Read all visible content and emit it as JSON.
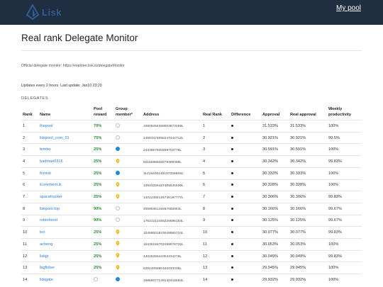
{
  "header": {
    "brand": "Lisk",
    "my_pool_label": "My pool"
  },
  "page": {
    "title": "Real rank Delegate Monitor",
    "official_text": "Official delegate monitor: https://explorer.lisk.io/delegateMonitor",
    "updates_text": "Updates every 2 hours. Last update: Jan10 23:20",
    "section_label": "DELEGATES"
  },
  "table": {
    "columns": {
      "rank": "Rank",
      "name": "Name",
      "pool_reward": "Pool reward",
      "group_member": "Group member*",
      "address": "Address",
      "real_rank": "Real Rank",
      "difference": "Difference",
      "approval": "Approval",
      "real_approval": "Real approval",
      "weekly_productivity": "Weekly productivity"
    },
    "rows": [
      {
        "rank": "1",
        "name": "thepool",
        "reward": "70%",
        "member": "empty",
        "address": "10809494368003872009L",
        "real_rank": "1",
        "approval": "31.533%",
        "real_approval": "31.533%",
        "productivity": "100%"
      },
      {
        "rank": "2",
        "name": "liskpool_com_01",
        "reward": "75%",
        "member": "empty",
        "address": "14593474056247442712L",
        "real_rank": "2",
        "approval": "30.921%",
        "real_approval": "30.921%",
        "productivity": "99.5%"
      },
      {
        "rank": "3",
        "name": "tembo",
        "reward": "25%",
        "member": "blue",
        "address": "2433657930558702776L",
        "real_rank": "3",
        "approval": "30.591%",
        "real_approval": "30.591%",
        "productivity": "100%"
      },
      {
        "rank": "4",
        "name": "badman0316",
        "reward": "25%",
        "member": "pin",
        "address": "8015598606079399388L",
        "real_rank": "4",
        "approval": "30.342%",
        "real_approval": "30.342%",
        "productivity": "99.83%"
      },
      {
        "rank": "5",
        "name": "forrest",
        "reward": "25%",
        "member": "blue",
        "address": "1141640614610725898SL",
        "real_rank": "5",
        "approval": "30.333%",
        "real_approval": "30.333%",
        "productivity": "100%"
      },
      {
        "rank": "6",
        "name": "iii.element.iii",
        "reward": "25%",
        "member": "pin",
        "address": "13943256167405531820L",
        "real_rank": "6",
        "approval": "30.328%",
        "real_approval": "30.328%",
        "productivity": "100%"
      },
      {
        "rank": "7",
        "name": "spacetrucker",
        "reward": "25%",
        "member": "pin",
        "address": "14212484126746187777L",
        "real_rank": "7",
        "approval": "30.306%",
        "real_approval": "30.306%",
        "productivity": "99.83%"
      },
      {
        "rank": "8",
        "name": "liskpool.top",
        "reward": "90%",
        "member": "empty",
        "address": "4059636149257692063L",
        "real_rank": "8",
        "approval": "30.166%",
        "real_approval": "30.166%",
        "productivity": "99.67%"
      },
      {
        "rank": "9",
        "name": "robinhood",
        "reward": "90%",
        "member": "empty",
        "address": "17621212458226596154L",
        "real_rank": "9",
        "approval": "30.125%",
        "real_approval": "30.125%",
        "productivity": "99.67%"
      },
      {
        "rank": "10",
        "name": "leo",
        "reward": "25%",
        "member": "pin",
        "address": "15458001843048965724L",
        "real_rank": "10",
        "approval": "30.077%",
        "real_approval": "30.077%",
        "productivity": "99.83%"
      },
      {
        "rank": "11",
        "name": "acheng",
        "reward": "25%",
        "member": "pin",
        "address": "15435155702499576722L",
        "real_rank": "11",
        "approval": "30.053%",
        "real_approval": "30.053%",
        "productivity": "100%"
      },
      {
        "rank": "12",
        "name": "liskjp",
        "reward": "25%",
        "member": "pin",
        "address": "4402625644304434276L",
        "real_rank": "12",
        "approval": "30.049%",
        "real_approval": "30.049%",
        "productivity": "99.83%"
      },
      {
        "rank": "13",
        "name": "bigfisher",
        "reward": "25%",
        "member": "pin",
        "address": "6281405850162033335L",
        "real_rank": "13",
        "approval": "29.945%",
        "real_approval": "29.945%",
        "productivity": "100%"
      },
      {
        "rank": "14",
        "name": "liskgate",
        "reward": "empty",
        "member": "blue",
        "address": "16856077149140416694L",
        "real_rank": "14",
        "approval": "29.932%",
        "real_approval": "29.932%",
        "productivity": "100%"
      }
    ]
  },
  "colors": {
    "topbar": "#1f2e40",
    "link": "#2a7ae2",
    "reward_green": "#2e8b2e",
    "member_blue": "#1e88e5",
    "pin_yellow": "#f0b400"
  }
}
